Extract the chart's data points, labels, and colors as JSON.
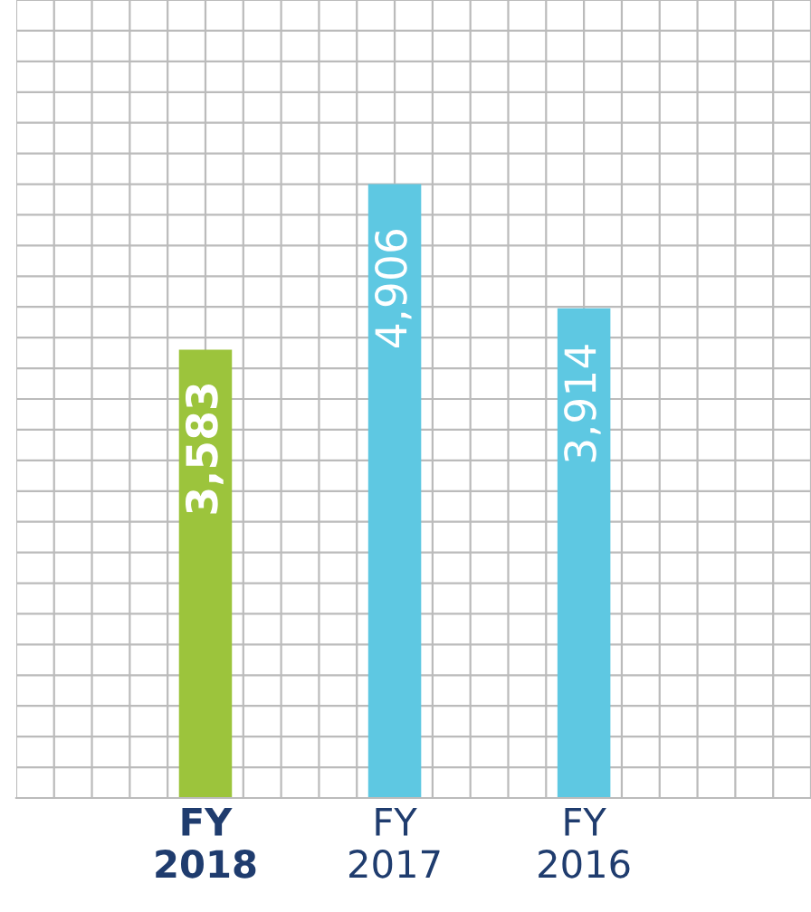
{
  "chart_data": {
    "type": "bar",
    "categories": [
      "FY\n2018",
      "FY\n2017",
      "FY\n2016"
    ],
    "values": [
      3583,
      4906,
      3914
    ],
    "value_labels": [
      "3,583",
      "4,906",
      "3,914"
    ],
    "colors": [
      "#9cc43c",
      "#5ec8e2",
      "#5ec8e2"
    ],
    "grid": true,
    "tick_labels": "x"
  }
}
